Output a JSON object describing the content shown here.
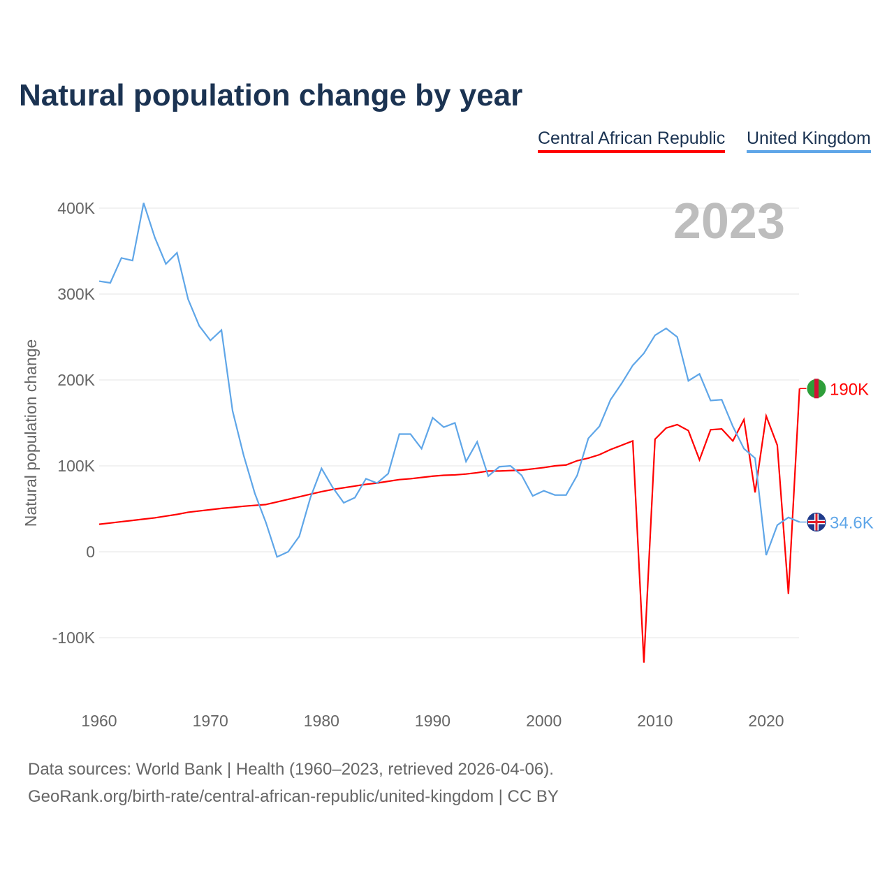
{
  "title": "Natural population change by year",
  "legend": [
    {
      "name": "Central African Republic",
      "color": "#ff0000"
    },
    {
      "name": "United Kingdom",
      "color": "#5fa6e8"
    }
  ],
  "year_label": "2023",
  "footer": [
    "Data sources: World Bank | Health (1960–2023, retrieved 2026-04-06).",
    "GeoRank.org/birth-rate/central-african-republic/united-kingdom | CC BY"
  ],
  "chart_data": {
    "type": "line",
    "ylabel": "Natural population change",
    "xlim": [
      1960,
      2023
    ],
    "ylim": [
      -140000,
      420000
    ],
    "xticks": [
      "1960",
      "1970",
      "1980",
      "1990",
      "2000",
      "2010",
      "2020"
    ],
    "yticks": [
      {
        "v": -100000,
        "l": "-100K"
      },
      {
        "v": 0,
        "l": "0"
      },
      {
        "v": 100000,
        "l": "100K"
      },
      {
        "v": 200000,
        "l": "200K"
      },
      {
        "v": 300000,
        "l": "300K"
      },
      {
        "v": 400000,
        "l": "400K"
      }
    ],
    "x_start": 1960,
    "series": [
      {
        "name": "Central African Republic",
        "color": "#ff0000",
        "end_label": "190K",
        "values": [
          32,
          33.5,
          35,
          36.5,
          38,
          39.5,
          41.5,
          43.5,
          46,
          47.5,
          49,
          50.5,
          51.7,
          53,
          54,
          55,
          58,
          61,
          64,
          67,
          70,
          72.5,
          74.5,
          76.5,
          78.5,
          80,
          82,
          84,
          85,
          86.5,
          88,
          89,
          89.5,
          90.5,
          92,
          94,
          94,
          94.5,
          95,
          96.5,
          98,
          100,
          101,
          106,
          109,
          113,
          119,
          124,
          129,
          -129,
          131,
          144,
          148,
          141,
          107,
          142,
          143,
          129,
          154,
          69,
          158,
          124,
          -49,
          190
        ]
      },
      {
        "name": "United Kingdom",
        "color": "#5fa6e8",
        "end_label": "34.6K",
        "values": [
          315,
          313,
          342,
          339,
          406,
          366,
          335,
          348,
          294,
          263,
          246,
          258,
          164,
          112,
          68,
          34,
          -6,
          0,
          18,
          63,
          97,
          75,
          57,
          63,
          85,
          80,
          91,
          137,
          137,
          120,
          156,
          145,
          150,
          105,
          128,
          88,
          99,
          100,
          89,
          65,
          71,
          66,
          66,
          89,
          132,
          146,
          177,
          196,
          217,
          231,
          252,
          260,
          250,
          199,
          207,
          176,
          177,
          146,
          120,
          109,
          -4,
          31,
          40,
          34.6
        ]
      }
    ]
  }
}
